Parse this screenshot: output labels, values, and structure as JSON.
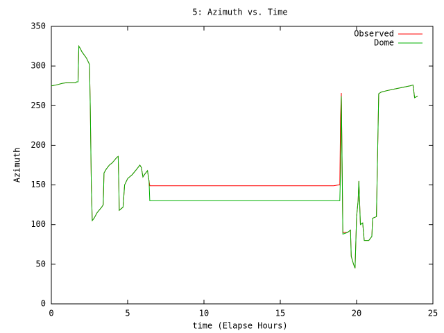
{
  "chart_data": {
    "type": "line",
    "title": "5: Azimuth vs. Time",
    "xlabel": "time (Elapse Hours)",
    "ylabel": "Azimuth",
    "x": [
      0,
      0.3,
      0.5,
      0.7,
      1.0,
      1.6,
      1.65,
      1.75,
      1.8,
      1.9,
      2.0,
      2.3,
      2.5,
      2.55,
      2.62,
      2.68,
      2.8,
      3.0,
      3.3,
      3.4,
      3.45,
      3.6,
      3.8,
      4.0,
      4.3,
      4.38,
      4.42,
      4.45,
      4.7,
      4.8,
      5.0,
      5.3,
      5.6,
      5.8,
      5.9,
      6.0,
      6.1,
      6.3,
      6.4,
      6.45,
      12.0,
      18.5,
      18.8,
      18.9,
      18.95,
      19.0,
      19.05,
      19.1,
      19.4,
      19.6,
      19.65,
      19.8,
      19.9,
      20.0,
      20.1,
      20.15,
      20.25,
      20.4,
      20.5,
      20.8,
      21.0,
      21.05,
      21.3,
      21.45,
      21.6,
      22.0,
      22.5,
      23.0,
      23.5,
      23.7,
      23.8,
      24.0
    ],
    "series": [
      {
        "name": "Observed",
        "color": "#ff0000",
        "values": [
          275,
          276,
          277,
          278,
          279,
          279,
          280,
          280,
          325,
          322,
          318,
          310,
          302,
          250,
          150,
          105,
          108,
          115,
          122,
          125,
          165,
          170,
          175,
          178,
          185,
          186,
          152,
          118,
          122,
          150,
          158,
          163,
          170,
          175,
          172,
          160,
          163,
          168,
          155,
          149,
          149,
          149,
          150,
          150,
          235,
          266,
          180,
          90,
          90,
          93,
          60,
          50,
          45,
          110,
          130,
          155,
          100,
          102,
          80,
          80,
          85,
          108,
          110,
          265,
          267,
          269,
          271,
          273,
          275,
          276,
          260,
          262
        ]
      },
      {
        "name": "Dome",
        "color": "#00b000",
        "values": [
          275,
          276,
          277,
          278,
          279,
          279,
          280,
          280,
          325,
          322,
          318,
          310,
          302,
          250,
          150,
          105,
          108,
          115,
          122,
          125,
          165,
          170,
          175,
          178,
          185,
          186,
          152,
          118,
          122,
          150,
          158,
          163,
          170,
          175,
          172,
          160,
          163,
          168,
          155,
          130,
          130,
          130,
          130,
          130,
          170,
          262,
          180,
          88,
          90,
          93,
          60,
          50,
          45,
          110,
          130,
          155,
          100,
          102,
          80,
          80,
          85,
          108,
          110,
          265,
          267,
          269,
          271,
          273,
          275,
          276,
          260,
          262
        ]
      }
    ],
    "xlim": [
      0,
      25
    ],
    "xticks": [
      0,
      5,
      10,
      15,
      20,
      25
    ],
    "ylim": [
      0,
      350
    ],
    "yticks": [
      0,
      50,
      100,
      150,
      200,
      250,
      300,
      350
    ],
    "legend": "top-right",
    "grid": false
  }
}
